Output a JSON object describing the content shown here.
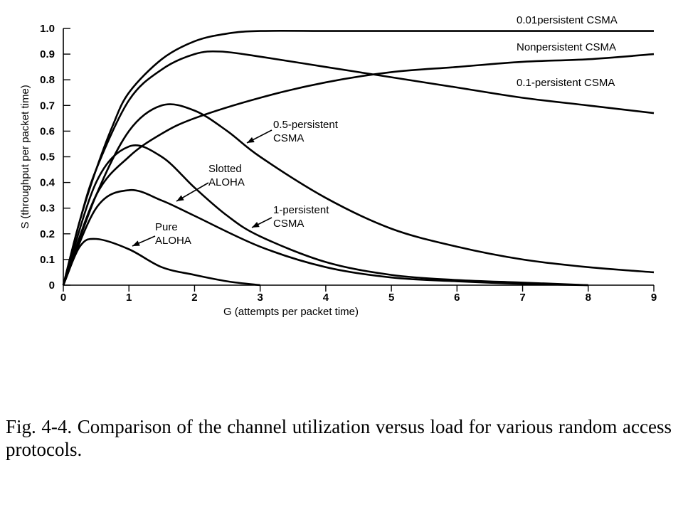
{
  "chart_data": {
    "type": "line",
    "xlabel": "G (attempts per packet time)",
    "ylabel": "S (throughput per packet time)",
    "xlim": [
      0,
      9
    ],
    "ylim": [
      0,
      1.0
    ],
    "x_ticks": [
      "0",
      "1",
      "2",
      "3",
      "4",
      "5",
      "6",
      "7",
      "8",
      "9"
    ],
    "y_ticks": [
      "0",
      "0.1",
      "0.2",
      "0.3",
      "0.4",
      "0.5",
      "0.6",
      "0.7",
      "0.8",
      "0.9",
      "1.0"
    ],
    "grid": false,
    "legend": "none",
    "series": [
      {
        "name": "0.01persistent CSMA",
        "x": [
          0,
          0.25,
          0.5,
          0.75,
          1,
          1.5,
          2,
          2.5,
          3,
          4,
          5,
          6,
          7,
          8,
          9
        ],
        "y": [
          0,
          0.25,
          0.45,
          0.62,
          0.75,
          0.88,
          0.95,
          0.98,
          0.99,
          0.99,
          0.99,
          0.99,
          0.99,
          0.99,
          0.99
        ]
      },
      {
        "name": "Nonpersistent CSMA",
        "x": [
          0,
          0.5,
          1,
          1.5,
          2,
          3,
          4,
          5,
          6,
          7,
          8,
          9
        ],
        "y": [
          0,
          0.35,
          0.5,
          0.59,
          0.65,
          0.73,
          0.79,
          0.83,
          0.85,
          0.87,
          0.88,
          0.9
        ]
      },
      {
        "name": "0.1-persistent CSMA",
        "x": [
          0,
          0.25,
          0.5,
          1,
          1.5,
          2,
          2.4,
          3,
          4,
          5,
          6,
          7,
          8,
          9
        ],
        "y": [
          0,
          0.25,
          0.45,
          0.72,
          0.84,
          0.9,
          0.91,
          0.89,
          0.85,
          0.81,
          0.77,
          0.73,
          0.7,
          0.67
        ]
      },
      {
        "name": "0.5-persistent CSMA",
        "x": [
          0,
          0.5,
          1,
          1.5,
          2,
          2.5,
          3,
          4,
          5,
          6,
          7,
          8,
          9
        ],
        "y": [
          0,
          0.35,
          0.6,
          0.7,
          0.68,
          0.6,
          0.5,
          0.34,
          0.22,
          0.15,
          0.1,
          0.07,
          0.05
        ]
      },
      {
        "name": "1-persistent CSMA",
        "x": [
          0,
          0.5,
          1,
          1.5,
          2,
          2.5,
          3,
          4,
          5,
          6,
          7,
          8
        ],
        "y": [
          0,
          0.4,
          0.54,
          0.5,
          0.38,
          0.27,
          0.19,
          0.09,
          0.04,
          0.02,
          0.01,
          0.0
        ]
      },
      {
        "name": "Slotted ALOHA",
        "x": [
          0,
          0.5,
          1,
          1.5,
          2,
          3,
          4,
          5,
          6,
          7,
          8
        ],
        "y": [
          0,
          0.3,
          0.37,
          0.33,
          0.27,
          0.15,
          0.07,
          0.03,
          0.015,
          0.005,
          0.0
        ]
      },
      {
        "name": "Pure ALOHA",
        "x": [
          0,
          0.25,
          0.5,
          1,
          1.5,
          2,
          2.5,
          3
        ],
        "y": [
          0,
          0.15,
          0.18,
          0.14,
          0.07,
          0.04,
          0.015,
          0.0
        ]
      }
    ],
    "annotations": [
      {
        "series": "0.01persistent CSMA",
        "lines": [
          "0.01persistent CSMA"
        ]
      },
      {
        "series": "Nonpersistent CSMA",
        "lines": [
          "Nonpersistent CSMA"
        ]
      },
      {
        "series": "0.1-persistent CSMA",
        "lines": [
          "0.1-persistent CSMA"
        ]
      },
      {
        "series": "0.5-persistent CSMA",
        "lines": [
          "0.5-persistent",
          "CSMA"
        ]
      },
      {
        "series": "Slotted ALOHA",
        "lines": [
          "Slotted",
          "ALOHA"
        ]
      },
      {
        "series": "1-persistent CSMA",
        "lines": [
          "1-persistent",
          "CSMA"
        ]
      },
      {
        "series": "Pure ALOHA",
        "lines": [
          "Pure",
          "ALOHA"
        ]
      }
    ]
  },
  "caption": "Fig. 4-4. Comparison of the channel utilization versus load for various random access protocols."
}
